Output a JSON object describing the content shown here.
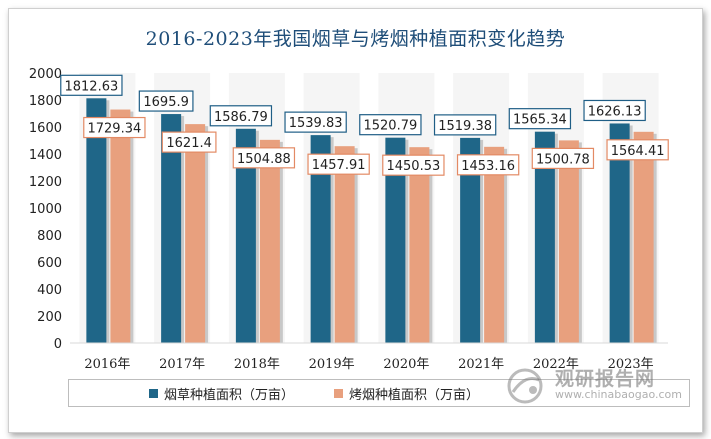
{
  "chart_data": {
    "type": "bar",
    "title": "2016-2023年我国烟草与烤烟种植面积变化趋势",
    "categories": [
      "2016年",
      "2017年",
      "2018年",
      "2019年",
      "2020年",
      "2021年",
      "2022年",
      "2023年"
    ],
    "series": [
      {
        "name": "烟草种植面积（万亩）",
        "color": "#1f6688",
        "values": [
          1812.63,
          1695.9,
          1586.79,
          1539.83,
          1520.79,
          1519.38,
          1565.34,
          1626.13
        ]
      },
      {
        "name": "烤烟种植面积（万亩）",
        "color": "#e8a07e",
        "values": [
          1729.34,
          1621.4,
          1504.88,
          1457.91,
          1450.53,
          1453.16,
          1500.78,
          1564.41
        ]
      }
    ],
    "data_labels": [
      [
        "1812.63",
        "1695.9",
        "1586.79",
        "1539.83",
        "1520.79",
        "1519.38",
        "1565.34",
        "1626.13"
      ],
      [
        "1729.34",
        "1621.4",
        "1504.88",
        "1457.91",
        "1450.53",
        "1453.16",
        "1500.78",
        "1564.41"
      ]
    ],
    "ylim": [
      0,
      2000
    ],
    "yticks": [
      "0",
      "200",
      "400",
      "600",
      "800",
      "1000",
      "1200",
      "1400",
      "1600",
      "1800",
      "2000"
    ],
    "grid": false,
    "legend_position": "bottom"
  },
  "watermark": {
    "text_cn": "观研报告网",
    "url": "www.chinabaogao.com",
    "icon": "watermark-logo-icon"
  }
}
